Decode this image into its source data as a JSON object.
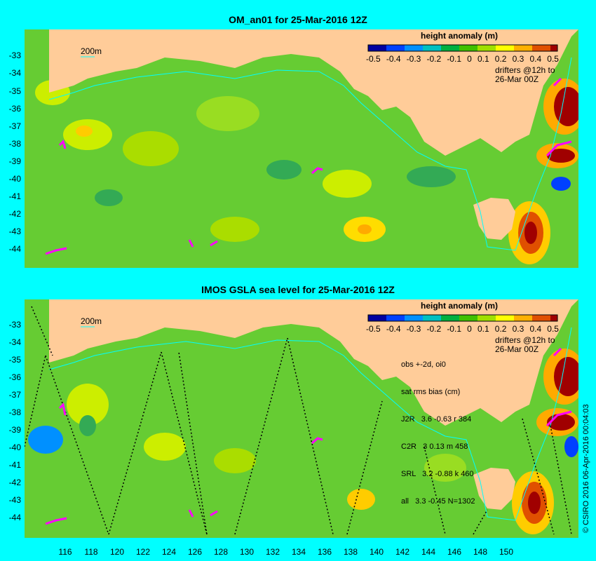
{
  "panels": [
    {
      "title": "OM_an01 for 25-Mar-2016 12Z"
    },
    {
      "title": "IMOS GSLA sea level  for 25-Mar-2016 12Z"
    }
  ],
  "yticks": [
    "-33",
    "-34",
    "-35",
    "-36",
    "-37",
    "-38",
    "-39",
    "-40",
    "-41",
    "-42",
    "-43",
    "-44"
  ],
  "xticks": [
    "116",
    "118",
    "120",
    "122",
    "124",
    "126",
    "128",
    "130",
    "132",
    "134",
    "136",
    "138",
    "140",
    "142",
    "144",
    "146",
    "148",
    "150"
  ],
  "colorbar": {
    "title": "height anomaly (m)",
    "labels": [
      "-0.5",
      "-0.4",
      "-0.3",
      "-0.2",
      "-0.1",
      "0",
      "0.1",
      "0.2",
      "0.3",
      "0.4",
      "0.5"
    ],
    "colors": [
      "#0000a0",
      "#0040ff",
      "#0090ff",
      "#00c0c0",
      "#00b040",
      "#40c000",
      "#a0e000",
      "#ffff00",
      "#ffb000",
      "#e05000",
      "#a00000",
      "#600000"
    ]
  },
  "isobath_label": "200m",
  "drifters_label_1": "drifters @12h to",
  "drifters_label_2": "26-Mar 00Z",
  "stats": {
    "l1": "obs +-2d, oi0",
    "l2": "sat rms bias (cm)",
    "l3": "J2R   3.6 -0.63 r 384",
    "l4": "C2R   3 0.13 m 458",
    "l5": "SRL   3.2 -0.88 k 460",
    "l6": "all   3.3 -0.45 N=1302"
  },
  "copyright": "© CSIRO 2016  06-Apr-2016 00:04:03",
  "colors": {
    "land": "#ffcc99",
    "ocean": "#66cc33",
    "background": "#00ffff",
    "drifter": "#ff00ff"
  }
}
